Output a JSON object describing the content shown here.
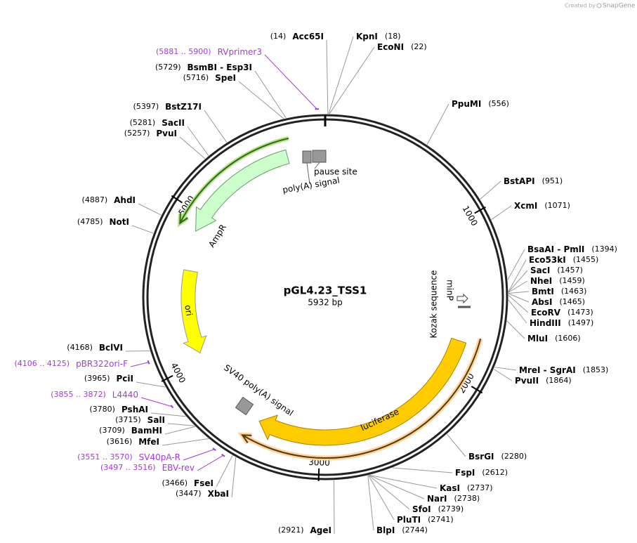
{
  "credit": {
    "prefix": "Created by",
    "brand": "SnapGene"
  },
  "plasmid": {
    "name": "pGL4.23_TSS1",
    "length": {
      "value": 5932,
      "label": "5932 bp"
    }
  },
  "ticks": [
    1000,
    2000,
    3000,
    4000,
    5000
  ],
  "sites": [
    {
      "name": "Acc65I",
      "position": {
        "value": 14,
        "label": "(14)"
      }
    },
    {
      "name": "KpnI",
      "position": {
        "value": 18,
        "label": "(18)"
      }
    },
    {
      "name": "EcoNI",
      "position": {
        "value": 22,
        "label": "(22)"
      }
    },
    {
      "name": "PpuMI",
      "position": {
        "value": 556,
        "label": "(556)"
      }
    },
    {
      "name": "BstAPI",
      "position": {
        "value": 951,
        "label": "(951)"
      }
    },
    {
      "name": "XcmI",
      "position": {
        "value": 1071,
        "label": "(1071)"
      }
    },
    {
      "name": "BsaAI - PmlI",
      "position": {
        "value": 1394,
        "label": "(1394)"
      }
    },
    {
      "name": "Eco53kI",
      "position": {
        "value": 1455,
        "label": "(1455)"
      }
    },
    {
      "name": "SacI",
      "position": {
        "value": 1457,
        "label": "(1457)"
      }
    },
    {
      "name": "NheI",
      "position": {
        "value": 1459,
        "label": "(1459)"
      }
    },
    {
      "name": "BmtI",
      "position": {
        "value": 1463,
        "label": "(1463)"
      }
    },
    {
      "name": "AbsI",
      "position": {
        "value": 1465,
        "label": "(1465)"
      }
    },
    {
      "name": "EcoRV",
      "position": {
        "value": 1473,
        "label": "(1473)"
      }
    },
    {
      "name": "HindIII",
      "position": {
        "value": 1497,
        "label": "(1497)"
      }
    },
    {
      "name": "MluI",
      "position": {
        "value": 1606,
        "label": "(1606)"
      }
    },
    {
      "name": "MreI - SgrAI",
      "position": {
        "value": 1853,
        "label": "(1853)"
      }
    },
    {
      "name": "PvuII",
      "position": {
        "value": 1864,
        "label": "(1864)"
      }
    },
    {
      "name": "BsrGI",
      "position": {
        "value": 2280,
        "label": "(2280)"
      }
    },
    {
      "name": "FspI",
      "position": {
        "value": 2612,
        "label": "(2612)"
      }
    },
    {
      "name": "KasI",
      "position": {
        "value": 2737,
        "label": "(2737)"
      }
    },
    {
      "name": "NarI",
      "position": {
        "value": 2738,
        "label": "(2738)"
      }
    },
    {
      "name": "SfoI",
      "position": {
        "value": 2739,
        "label": "(2739)"
      }
    },
    {
      "name": "PluTI",
      "position": {
        "value": 2741,
        "label": "(2741)"
      }
    },
    {
      "name": "BlpI",
      "position": {
        "value": 2744,
        "label": "(2744)"
      }
    },
    {
      "name": "AgeI",
      "position": {
        "value": 2921,
        "label": "(2921)"
      }
    },
    {
      "name": "XbaI",
      "position": {
        "value": 3447,
        "label": "(3447)"
      }
    },
    {
      "name": "FseI",
      "position": {
        "value": 3466,
        "label": "(3466)"
      }
    },
    {
      "name": "MfeI",
      "position": {
        "value": 3616,
        "label": "(3616)"
      }
    },
    {
      "name": "BamHI",
      "position": {
        "value": 3709,
        "label": "(3709)"
      }
    },
    {
      "name": "SalI",
      "position": {
        "value": 3715,
        "label": "(3715)"
      }
    },
    {
      "name": "PshAI",
      "position": {
        "value": 3780,
        "label": "(3780)"
      }
    },
    {
      "name": "PciI",
      "position": {
        "value": 3965,
        "label": "(3965)"
      }
    },
    {
      "name": "BclVI",
      "position": {
        "value": 4168,
        "label": "(4168)"
      }
    },
    {
      "name": "NotI",
      "position": {
        "value": 4785,
        "label": "(4785)"
      }
    },
    {
      "name": "AhdI",
      "position": {
        "value": 4887,
        "label": "(4887)"
      }
    },
    {
      "name": "PvuI",
      "position": {
        "value": 5257,
        "label": "(5257)"
      }
    },
    {
      "name": "SacII",
      "position": {
        "value": 5281,
        "label": "(5281)"
      }
    },
    {
      "name": "BstZ17I",
      "position": {
        "value": 5397,
        "label": "(5397)"
      }
    },
    {
      "name": "SpeI",
      "position": {
        "value": 5716,
        "label": "(5716)"
      }
    },
    {
      "name": "BsmBI - Esp3I",
      "position": {
        "value": 5729,
        "label": "(5729)"
      }
    }
  ],
  "primers": [
    {
      "name": "RVprimer3",
      "range": {
        "start": 5881,
        "end": 5900,
        "label": "(5881 .. 5900)"
      }
    },
    {
      "name": "pBR322ori-F",
      "range": {
        "start": 4106,
        "end": 4125,
        "label": "(4106 .. 4125)"
      }
    },
    {
      "name": "L4440",
      "range": {
        "start": 3855,
        "end": 3872,
        "label": "(3855 .. 3872)"
      }
    },
    {
      "name": "SV40pA-R",
      "range": {
        "start": 3551,
        "end": 3570,
        "label": "(3551 .. 3570)"
      }
    },
    {
      "name": "EBV-rev",
      "range": {
        "start": 3497,
        "end": 3516,
        "label": "(3497 .. 3516)"
      }
    }
  ],
  "features": {
    "ampr": "AmpR",
    "ori": "ori",
    "luciferase": "luciferase",
    "sv40": "SV40 poly(A) signal",
    "polya": "poly(A) signal",
    "pause": "pause site",
    "minp": "minP",
    "kozak": "Kozak sequence"
  }
}
